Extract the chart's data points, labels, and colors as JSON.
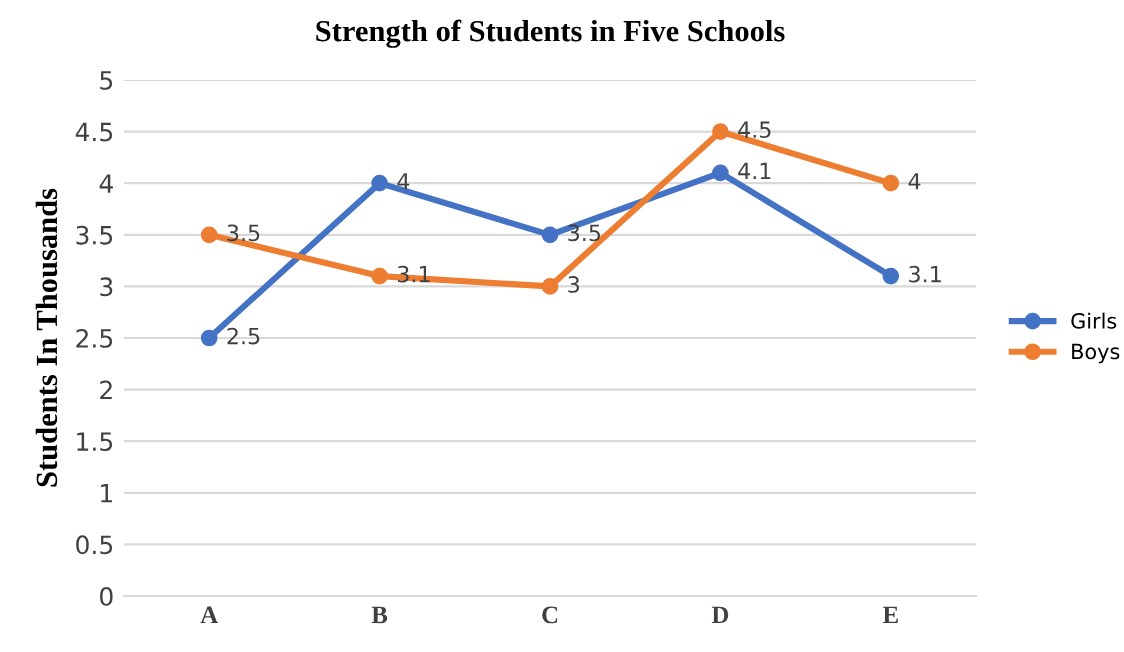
{
  "chart_data": {
    "type": "line",
    "title": "Strength of Students in Five Schools",
    "ylabel": "Students In Thousands",
    "categories": [
      "A",
      "B",
      "C",
      "D",
      "E"
    ],
    "series": [
      {
        "name": "Girls",
        "color": "#4472c4",
        "values": [
          2.5,
          4,
          3.5,
          4.1,
          3.1
        ]
      },
      {
        "name": "Boys",
        "color": "#ed7d31",
        "values": [
          3.5,
          3.1,
          3,
          4.5,
          4
        ]
      }
    ],
    "ylim": [
      0,
      5
    ],
    "yticks": [
      0,
      0.5,
      1,
      1.5,
      2,
      2.5,
      3,
      3.5,
      4,
      4.5,
      5
    ],
    "grid": "y",
    "legend": "right",
    "marker": "circle",
    "line_style": "solid",
    "data_labels": true
  }
}
